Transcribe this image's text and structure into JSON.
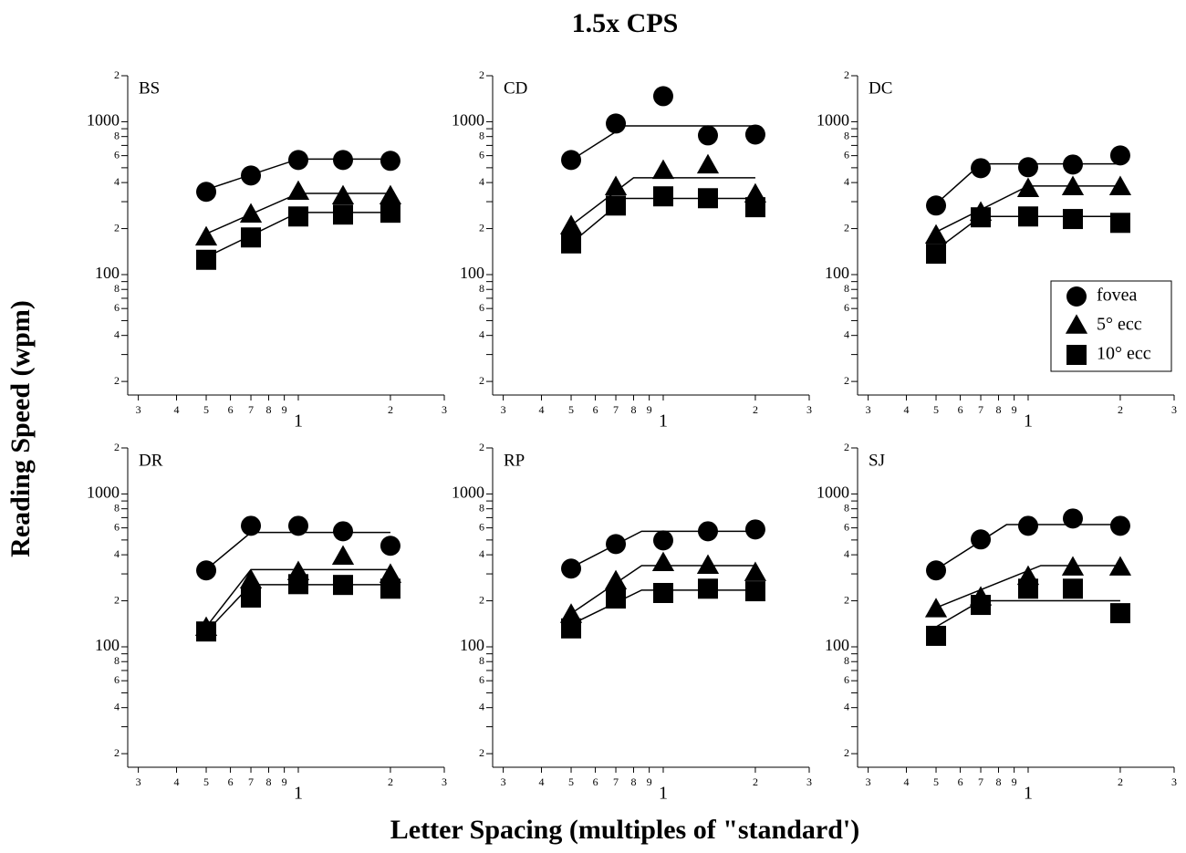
{
  "title": "1.5x CPS",
  "xlabel": "Letter Spacing (multiples of \"standard')",
  "ylabel": "Reading Speed (wpm)",
  "chart_data": [
    {
      "type": "scatter",
      "label": "BS",
      "log_x": true,
      "log_y": true,
      "color": "#000000",
      "x": [
        0.5,
        0.7,
        1.0,
        1.4,
        2.0
      ],
      "xlim": [
        0.277,
        3
      ],
      "ylim": [
        16.3,
        2000
      ],
      "xticks": [
        {
          "value": 0.3,
          "label": "3"
        },
        {
          "value": 0.4,
          "label": "4"
        },
        {
          "value": 0.5,
          "label": "5"
        },
        {
          "value": 0.6,
          "label": "6"
        },
        {
          "value": 0.7,
          "label": "7"
        },
        {
          "value": 0.8,
          "label": "8"
        },
        {
          "value": 0.9,
          "label": "9"
        },
        1,
        2,
        3
      ],
      "yticks": [
        {
          "value": 20,
          "label": "2"
        },
        {
          "value": 40,
          "label": "4"
        },
        {
          "value": 60,
          "label": "6"
        },
        {
          "value": 80,
          "label": "8"
        },
        100,
        {
          "value": 200,
          "label": "2"
        },
        {
          "value": 400,
          "label": "4"
        },
        {
          "value": 600,
          "label": "6"
        },
        {
          "value": 800,
          "label": "8"
        },
        1000,
        {
          "value": 2000,
          "label": "2"
        }
      ],
      "yminor": [
        30,
        50,
        70,
        90,
        300,
        500,
        700,
        900
      ],
      "series": [
        {
          "name": "fovea",
          "marker": "circle",
          "values": [
            348,
            445,
            562,
            562,
            555
          ],
          "fit_x": [
            0.5,
            1.0,
            2.0
          ],
          "fit_values": [
            360,
            570,
            570
          ]
        },
        {
          "name": "5° ecc",
          "marker": "triangle",
          "values": [
            175,
            247,
            348,
            325,
            325
          ],
          "fit_x": [
            0.5,
            1.0,
            2.0
          ],
          "fit_values": [
            185,
            340,
            340
          ]
        },
        {
          "name": "10° ecc",
          "marker": "square",
          "values": [
            125,
            175,
            240,
            247,
            254
          ],
          "fit_x": [
            0.5,
            1.0,
            2.0
          ],
          "fit_values": [
            130,
            255,
            255
          ]
        }
      ]
    },
    {
      "type": "scatter",
      "label": "CD",
      "log_x": true,
      "log_y": true,
      "color": "#000000",
      "x": [
        0.5,
        0.7,
        1.0,
        1.4,
        2.0
      ],
      "xlim": [
        0.277,
        3
      ],
      "ylim": [
        16.3,
        2000
      ],
      "xticks": [
        {
          "value": 0.3,
          "label": "3"
        },
        {
          "value": 0.4,
          "label": "4"
        },
        {
          "value": 0.5,
          "label": "5"
        },
        {
          "value": 0.6,
          "label": "6"
        },
        {
          "value": 0.7,
          "label": "7"
        },
        {
          "value": 0.8,
          "label": "8"
        },
        {
          "value": 0.9,
          "label": "9"
        },
        1,
        2,
        3
      ],
      "yticks": [
        {
          "value": 20,
          "label": "2"
        },
        {
          "value": 40,
          "label": "4"
        },
        {
          "value": 60,
          "label": "6"
        },
        {
          "value": 80,
          "label": "8"
        },
        100,
        {
          "value": 200,
          "label": "2"
        },
        {
          "value": 400,
          "label": "4"
        },
        {
          "value": 600,
          "label": "6"
        },
        {
          "value": 800,
          "label": "8"
        },
        1000,
        {
          "value": 2000,
          "label": "2"
        }
      ],
      "yminor": [
        30,
        50,
        70,
        90,
        300,
        500,
        700,
        900
      ],
      "series": [
        {
          "name": "fovea",
          "marker": "circle",
          "values": [
            562,
            973,
            1470,
            814,
            825
          ],
          "fit_x": [
            0.5,
            0.75,
            2.0
          ],
          "fit_values": [
            560,
            940,
            940
          ]
        },
        {
          "name": "5° ecc",
          "marker": "triangle",
          "values": [
            207,
            373,
            477,
            518,
            334
          ],
          "fit_x": [
            0.5,
            0.8,
            2.0
          ],
          "fit_values": [
            210,
            430,
            430
          ]
        },
        {
          "name": "10° ecc",
          "marker": "square",
          "values": [
            160,
            283,
            325,
            316,
            276
          ],
          "fit_x": [
            0.5,
            0.75,
            2.0
          ],
          "fit_values": [
            160,
            315,
            315
          ]
        }
      ]
    },
    {
      "type": "scatter",
      "label": "DC",
      "log_x": true,
      "log_y": true,
      "color": "#000000",
      "legend": "lower right",
      "x": [
        0.5,
        0.7,
        1.0,
        1.4,
        2.0
      ],
      "xlim": [
        0.277,
        3
      ],
      "ylim": [
        16.3,
        2000
      ],
      "xticks": [
        {
          "value": 0.3,
          "label": "3"
        },
        {
          "value": 0.4,
          "label": "4"
        },
        {
          "value": 0.5,
          "label": "5"
        },
        {
          "value": 0.6,
          "label": "6"
        },
        {
          "value": 0.7,
          "label": "7"
        },
        {
          "value": 0.8,
          "label": "8"
        },
        {
          "value": 0.9,
          "label": "9"
        },
        1,
        2,
        3
      ],
      "yticks": [
        {
          "value": 20,
          "label": "2"
        },
        {
          "value": 40,
          "label": "4"
        },
        {
          "value": 60,
          "label": "6"
        },
        {
          "value": 80,
          "label": "8"
        },
        100,
        {
          "value": 200,
          "label": "2"
        },
        {
          "value": 400,
          "label": "4"
        },
        {
          "value": 600,
          "label": "6"
        },
        {
          "value": 800,
          "label": "8"
        },
        1000,
        {
          "value": 2000,
          "label": "2"
        }
      ],
      "yminor": [
        30,
        50,
        70,
        90,
        300,
        500,
        700,
        900
      ],
      "series": [
        {
          "name": "fovea",
          "marker": "circle",
          "values": [
            283,
            497,
            504,
            525,
            602
          ],
          "fit_x": [
            0.5,
            0.7,
            2.0
          ],
          "fit_values": [
            290,
            530,
            530
          ]
        },
        {
          "name": "5° ecc",
          "marker": "triangle",
          "values": [
            180,
            254,
            363,
            373,
            373
          ],
          "fit_x": [
            0.5,
            1.0,
            2.0
          ],
          "fit_values": [
            190,
            380,
            380
          ]
        },
        {
          "name": "10° ecc",
          "marker": "square",
          "values": [
            137,
            237,
            240,
            231,
            218
          ],
          "fit_x": [
            0.5,
            0.7,
            2.0
          ],
          "fit_values": [
            145,
            240,
            240
          ]
        }
      ]
    },
    {
      "type": "scatter",
      "label": "DR",
      "log_x": true,
      "log_y": true,
      "color": "#000000",
      "x": [
        0.5,
        0.7,
        1.0,
        1.4,
        2.0
      ],
      "xlim": [
        0.277,
        3
      ],
      "ylim": [
        16.3,
        2000
      ],
      "xticks": [
        {
          "value": 0.3,
          "label": "3"
        },
        {
          "value": 0.4,
          "label": "4"
        },
        {
          "value": 0.5,
          "label": "5"
        },
        {
          "value": 0.6,
          "label": "6"
        },
        {
          "value": 0.7,
          "label": "7"
        },
        {
          "value": 0.8,
          "label": "8"
        },
        {
          "value": 0.9,
          "label": "9"
        },
        1,
        2,
        3
      ],
      "yticks": [
        {
          "value": 20,
          "label": "2"
        },
        {
          "value": 40,
          "label": "4"
        },
        {
          "value": 60,
          "label": "6"
        },
        {
          "value": 80,
          "label": "8"
        },
        100,
        {
          "value": 200,
          "label": "2"
        },
        {
          "value": 400,
          "label": "4"
        },
        {
          "value": 600,
          "label": "6"
        },
        {
          "value": 800,
          "label": "8"
        },
        1000,
        {
          "value": 2000,
          "label": "2"
        }
      ],
      "yminor": [
        30,
        50,
        70,
        90,
        300,
        500,
        700,
        900
      ],
      "series": [
        {
          "name": "fovea",
          "marker": "circle",
          "values": [
            316,
            619,
            619,
            570,
            458
          ],
          "fit_x": [
            0.5,
            0.7,
            2.0
          ],
          "fit_values": [
            320,
            560,
            560
          ]
        },
        {
          "name": "5° ecc",
          "marker": "triangle",
          "values": [
            133,
            272,
            308,
            389,
            296
          ],
          "fit_x": [
            0.5,
            0.7,
            2.0
          ],
          "fit_values": [
            135,
            320,
            320
          ]
        },
        {
          "name": "10° ecc",
          "marker": "square",
          "values": [
            126,
            210,
            257,
            254,
            240
          ],
          "fit_x": [
            0.5,
            0.7,
            2.0
          ],
          "fit_values": [
            125,
            255,
            255
          ]
        }
      ]
    },
    {
      "type": "scatter",
      "label": "RP",
      "log_x": true,
      "log_y": true,
      "color": "#000000",
      "x": [
        0.5,
        0.7,
        1.0,
        1.4,
        2.0
      ],
      "xlim": [
        0.277,
        3
      ],
      "ylim": [
        16.3,
        2000
      ],
      "xticks": [
        {
          "value": 0.3,
          "label": "3"
        },
        {
          "value": 0.4,
          "label": "4"
        },
        {
          "value": 0.5,
          "label": "5"
        },
        {
          "value": 0.6,
          "label": "6"
        },
        {
          "value": 0.7,
          "label": "7"
        },
        {
          "value": 0.8,
          "label": "8"
        },
        {
          "value": 0.9,
          "label": "9"
        },
        1,
        2,
        3
      ],
      "yticks": [
        {
          "value": 20,
          "label": "2"
        },
        {
          "value": 40,
          "label": "4"
        },
        {
          "value": 60,
          "label": "6"
        },
        {
          "value": 80,
          "label": "8"
        },
        100,
        {
          "value": 200,
          "label": "2"
        },
        {
          "value": 400,
          "label": "4"
        },
        {
          "value": 600,
          "label": "6"
        },
        {
          "value": 800,
          "label": "8"
        },
        1000,
        {
          "value": 2000,
          "label": "2"
        }
      ],
      "yminor": [
        30,
        50,
        70,
        90,
        300,
        500,
        700,
        900
      ],
      "series": [
        {
          "name": "fovea",
          "marker": "circle",
          "values": [
            325,
            470,
            497,
            570,
            586
          ],
          "fit_x": [
            0.5,
            0.85,
            2.0
          ],
          "fit_values": [
            330,
            570,
            570
          ]
        },
        {
          "name": "5° ecc",
          "marker": "triangle",
          "values": [
            162,
            268,
            353,
            339,
            304
          ],
          "fit_x": [
            0.5,
            0.85,
            2.0
          ],
          "fit_values": [
            165,
            340,
            340
          ]
        },
        {
          "name": "10° ecc",
          "marker": "square",
          "values": [
            132,
            207,
            225,
            240,
            231
          ],
          "fit_x": [
            0.5,
            0.85,
            2.0
          ],
          "fit_values": [
            140,
            235,
            235
          ]
        }
      ]
    },
    {
      "type": "scatter",
      "label": "SJ",
      "log_x": true,
      "log_y": true,
      "color": "#000000",
      "x": [
        0.5,
        0.7,
        1.0,
        1.4,
        2.0
      ],
      "xlim": [
        0.277,
        3
      ],
      "ylim": [
        16.3,
        2000
      ],
      "xticks": [
        {
          "value": 0.3,
          "label": "3"
        },
        {
          "value": 0.4,
          "label": "4"
        },
        {
          "value": 0.5,
          "label": "5"
        },
        {
          "value": 0.6,
          "label": "6"
        },
        {
          "value": 0.7,
          "label": "7"
        },
        {
          "value": 0.8,
          "label": "8"
        },
        {
          "value": 0.9,
          "label": "9"
        },
        1,
        2,
        3
      ],
      "yticks": [
        {
          "value": 20,
          "label": "2"
        },
        {
          "value": 40,
          "label": "4"
        },
        {
          "value": 60,
          "label": "6"
        },
        {
          "value": 80,
          "label": "8"
        },
        100,
        {
          "value": 200,
          "label": "2"
        },
        {
          "value": 400,
          "label": "4"
        },
        {
          "value": 600,
          "label": "6"
        },
        {
          "value": 800,
          "label": "8"
        },
        1000,
        {
          "value": 2000,
          "label": "2"
        }
      ],
      "yminor": [
        30,
        50,
        70,
        90,
        300,
        500,
        700,
        900
      ],
      "series": [
        {
          "name": "fovea",
          "marker": "circle",
          "values": [
            316,
            504,
            619,
            691,
            619
          ],
          "fit_x": [
            0.5,
            0.85,
            2.0
          ],
          "fit_values": [
            320,
            630,
            630
          ]
        },
        {
          "name": "5° ecc",
          "marker": "triangle",
          "values": [
            176,
            210,
            287,
            330,
            330
          ],
          "fit_x": [
            0.5,
            1.1,
            2.0
          ],
          "fit_values": [
            180,
            340,
            340
          ]
        },
        {
          "name": "10° ecc",
          "marker": "square",
          "values": [
            118,
            188,
            240,
            240,
            166
          ],
          "fit_x": [
            0.5,
            0.7,
            2.0
          ],
          "fit_values": [
            135,
            200,
            200
          ]
        }
      ]
    }
  ]
}
